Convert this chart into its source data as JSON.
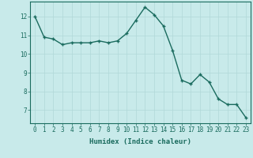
{
  "x": [
    0,
    1,
    2,
    3,
    4,
    5,
    6,
    7,
    8,
    9,
    10,
    11,
    12,
    13,
    14,
    15,
    16,
    17,
    18,
    19,
    20,
    21,
    22,
    23
  ],
  "y": [
    12.0,
    10.9,
    10.8,
    10.5,
    10.6,
    10.6,
    10.6,
    10.7,
    10.6,
    10.7,
    11.1,
    11.8,
    12.5,
    12.1,
    11.5,
    10.2,
    8.6,
    8.4,
    8.9,
    8.5,
    7.6,
    7.3,
    7.3,
    6.6
  ],
  "line_color": "#1a6b5e",
  "marker": "+",
  "marker_color": "#1a6b5e",
  "background_color": "#c8eaea",
  "grid_color": "#b0d8d8",
  "xlabel": "Humidex (Indice chaleur)",
  "xlim": [
    -0.5,
    23.5
  ],
  "ylim": [
    6.3,
    12.8
  ],
  "yticks": [
    7,
    8,
    9,
    10,
    11,
    12
  ],
  "xticks": [
    0,
    1,
    2,
    3,
    4,
    5,
    6,
    7,
    8,
    9,
    10,
    11,
    12,
    13,
    14,
    15,
    16,
    17,
    18,
    19,
    20,
    21,
    22,
    23
  ],
  "tick_color": "#1a6b5e",
  "label_fontsize": 6.5,
  "tick_fontsize": 5.5,
  "line_width": 1.0,
  "marker_size": 3
}
